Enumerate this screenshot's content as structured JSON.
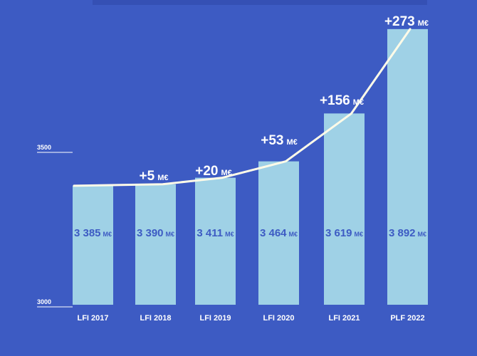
{
  "chart_data": {
    "type": "bar",
    "categories": [
      "LFI 2017",
      "LFI 2018",
      "LFI 2019",
      "LFI 2020",
      "LFI 2021",
      "PLF 2022"
    ],
    "values": [
      3385,
      3390,
      3411,
      3464,
      3619,
      3892
    ],
    "value_labels": [
      "3 385",
      "3 390",
      "3 411",
      "3 464",
      "3 619",
      "3 892"
    ],
    "value_unit": "M€",
    "deltas": [
      "",
      "+5",
      "+20",
      "+53",
      "+156",
      "+273"
    ],
    "delta_unit": "M€",
    "y_ticks": [
      3000,
      3500
    ],
    "ylim": [
      3000,
      3960
    ],
    "grid": false,
    "legend": "none",
    "colors": {
      "background": "#3d5bc3",
      "bar": "#9fd1e6",
      "bar_label": "#3d5bc3",
      "trend_line": "#fffbe8",
      "text": "#ffffff"
    }
  }
}
